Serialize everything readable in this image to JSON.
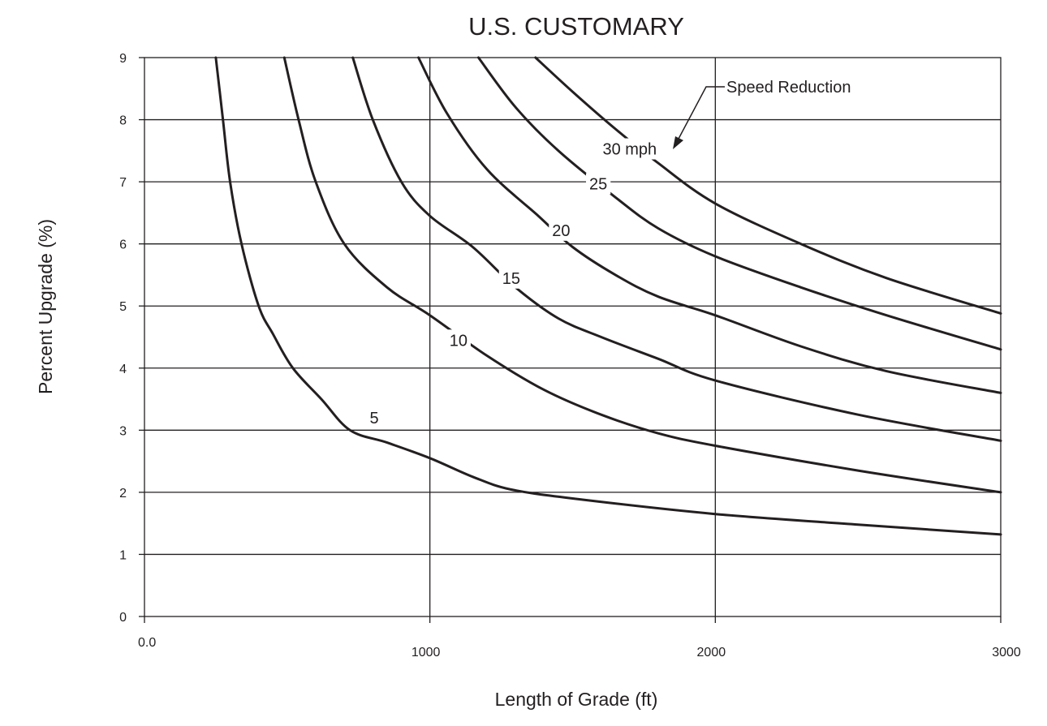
{
  "chart_data": {
    "type": "line",
    "title": "U.S. CUSTOMARY",
    "xlabel": "Length of Grade (ft)",
    "ylabel": "Percent Upgrade (%)",
    "xlim": [
      0,
      3000
    ],
    "ylim": [
      0,
      9
    ],
    "x_ticks": [
      {
        "value": 0,
        "label": "0.0"
      },
      {
        "value": 1000,
        "label": "1000"
      },
      {
        "value": 2000,
        "label": "2000"
      },
      {
        "value": 3000,
        "label": "3000"
      }
    ],
    "y_ticks": [
      {
        "value": 0,
        "label": "0"
      },
      {
        "value": 1,
        "label": "1"
      },
      {
        "value": 2,
        "label": "2"
      },
      {
        "value": 3,
        "label": "3"
      },
      {
        "value": 4,
        "label": "4"
      },
      {
        "value": 5,
        "label": "5"
      },
      {
        "value": 6,
        "label": "6"
      },
      {
        "value": 7,
        "label": "7"
      },
      {
        "value": 8,
        "label": "8"
      },
      {
        "value": 9,
        "label": "9"
      }
    ],
    "grid": true,
    "annotation": {
      "text": "Speed Reduction",
      "points_to_series": "30 mph"
    },
    "series": [
      {
        "name": "5 mph",
        "label": "5",
        "label_at": {
          "x": 805,
          "y": 3.2
        },
        "points": [
          [
            250,
            9.0
          ],
          [
            275,
            8.0
          ],
          [
            300,
            7.0
          ],
          [
            340,
            6.0
          ],
          [
            400,
            5.0
          ],
          [
            450,
            4.55
          ],
          [
            520,
            4.0
          ],
          [
            620,
            3.5
          ],
          [
            720,
            3.0
          ],
          [
            850,
            2.8
          ],
          [
            1000,
            2.55
          ],
          [
            1150,
            2.25
          ],
          [
            1280,
            2.05
          ],
          [
            1500,
            1.9
          ],
          [
            2000,
            1.65
          ],
          [
            2500,
            1.48
          ],
          [
            3000,
            1.32
          ]
        ]
      },
      {
        "name": "10 mph",
        "label": "10",
        "label_at": {
          "x": 1100,
          "y": 4.45
        },
        "points": [
          [
            490,
            9.0
          ],
          [
            540,
            8.0
          ],
          [
            600,
            7.0
          ],
          [
            700,
            6.0
          ],
          [
            850,
            5.3
          ],
          [
            1000,
            4.85
          ],
          [
            1200,
            4.2
          ],
          [
            1400,
            3.65
          ],
          [
            1600,
            3.25
          ],
          [
            1800,
            2.95
          ],
          [
            2000,
            2.75
          ],
          [
            2500,
            2.35
          ],
          [
            3000,
            2.0
          ]
        ]
      },
      {
        "name": "15 mph",
        "label": "15",
        "label_at": {
          "x": 1285,
          "y": 5.45
        },
        "points": [
          [
            730,
            9.0
          ],
          [
            800,
            8.0
          ],
          [
            900,
            7.0
          ],
          [
            1000,
            6.45
          ],
          [
            1150,
            5.95
          ],
          [
            1300,
            5.3
          ],
          [
            1450,
            4.8
          ],
          [
            1600,
            4.5
          ],
          [
            1800,
            4.15
          ],
          [
            2000,
            3.8
          ],
          [
            2500,
            3.25
          ],
          [
            3000,
            2.83
          ]
        ]
      },
      {
        "name": "20 mph",
        "label": "20",
        "label_at": {
          "x": 1460,
          "y": 6.22
        },
        "points": [
          [
            960,
            9.0
          ],
          [
            1060,
            8.1
          ],
          [
            1200,
            7.2
          ],
          [
            1380,
            6.45
          ],
          [
            1500,
            5.95
          ],
          [
            1650,
            5.5
          ],
          [
            1800,
            5.15
          ],
          [
            2000,
            4.85
          ],
          [
            2300,
            4.35
          ],
          [
            2600,
            3.95
          ],
          [
            3000,
            3.6
          ]
        ]
      },
      {
        "name": "25 mph",
        "label": "25",
        "label_at": {
          "x": 1590,
          "y": 6.97
        },
        "points": [
          [
            1170,
            9.0
          ],
          [
            1300,
            8.2
          ],
          [
            1450,
            7.5
          ],
          [
            1650,
            6.75
          ],
          [
            1800,
            6.25
          ],
          [
            2000,
            5.8
          ],
          [
            2300,
            5.3
          ],
          [
            2600,
            4.85
          ],
          [
            3000,
            4.3
          ]
        ]
      },
      {
        "name": "30 mph",
        "label": "30 mph",
        "label_at": {
          "x": 1700,
          "y": 7.53
        },
        "points": [
          [
            1370,
            9.0
          ],
          [
            1500,
            8.45
          ],
          [
            1650,
            7.85
          ],
          [
            1800,
            7.3
          ],
          [
            2000,
            6.65
          ],
          [
            2300,
            6.0
          ],
          [
            2600,
            5.45
          ],
          [
            3000,
            4.88
          ]
        ]
      }
    ]
  }
}
